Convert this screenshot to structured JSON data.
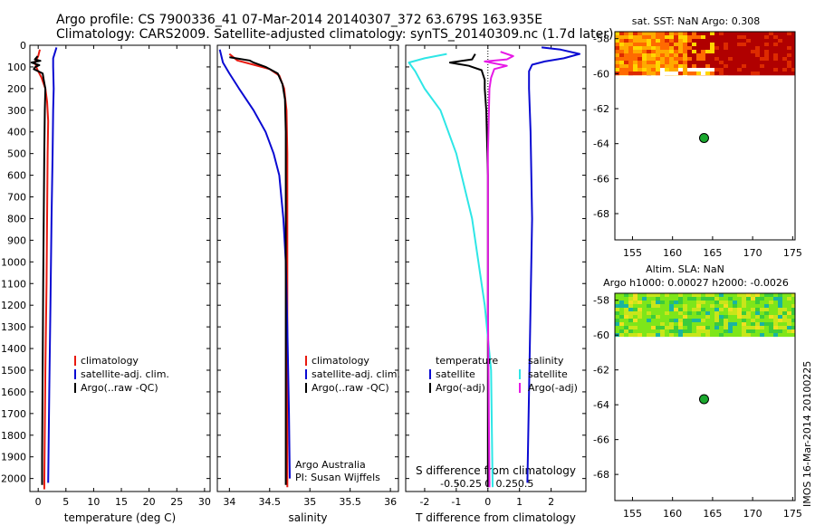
{
  "header": {
    "line1": "Argo profile: CS 7900336_41 07-Mar-2014 20140307_372 63.679S 163.935E",
    "line2": "Climatology: CARS2009. Satellite-adjusted climatology: synTS_20140309.nc (1.7d later)"
  },
  "side_label": "IMOS 16-Mar-2014 20100225",
  "colors": {
    "red": "#e8190f",
    "blue": "#0a0ad2",
    "black": "#000000",
    "cyan": "#2ee6e6",
    "magenta": "#e619e6",
    "marker": "#1aa82e"
  },
  "chart_data": [
    {
      "type": "line",
      "id": "temperature",
      "xlabel": "temperature (deg C)",
      "xlim": [
        -1.5,
        31
      ],
      "xticks": [
        0,
        5,
        10,
        15,
        20,
        25,
        30
      ],
      "ylim": [
        2060,
        0
      ],
      "yticks": [
        0,
        100,
        200,
        300,
        400,
        500,
        600,
        700,
        800,
        900,
        1000,
        1100,
        1200,
        1300,
        1400,
        1500,
        1600,
        1700,
        1800,
        1900,
        2000
      ],
      "legend": [
        "climatology",
        "satellite-adj. clim.",
        "Argo(..raw -QC)"
      ],
      "series": [
        {
          "name": "climatology",
          "color": "red",
          "points": [
            [
              0.3,
              20
            ],
            [
              0,
              50
            ],
            [
              -0.6,
              80
            ],
            [
              -0.2,
              110
            ],
            [
              0.6,
              150
            ],
            [
              1.3,
              200
            ],
            [
              1.6,
              260
            ],
            [
              1.8,
              350
            ],
            [
              1.7,
              500
            ],
            [
              1.6,
              800
            ],
            [
              1.5,
              1100
            ],
            [
              1.3,
              1500
            ],
            [
              1.1,
              2050
            ]
          ]
        },
        {
          "name": "satellite-adj. clim.",
          "color": "blue",
          "points": [
            [
              3.3,
              10
            ],
            [
              2.7,
              60
            ],
            [
              2.7,
              100
            ],
            [
              2.8,
              200
            ],
            [
              2.7,
              300
            ],
            [
              2.6,
              500
            ],
            [
              2.4,
              800
            ],
            [
              2.2,
              1200
            ],
            [
              2.0,
              1600
            ],
            [
              1.8,
              2020
            ]
          ]
        },
        {
          "name": "Argo(..raw -QC)",
          "color": "black",
          "points": [
            [
              -0.1,
              50
            ],
            [
              -0.6,
              65
            ],
            [
              0.4,
              72
            ],
            [
              -1.2,
              80
            ],
            [
              0.2,
              92
            ],
            [
              -0.5,
              100
            ],
            [
              -0.8,
              110
            ],
            [
              0.8,
              130
            ],
            [
              1.0,
              160
            ],
            [
              1.3,
              200
            ],
            [
              1.2,
              300
            ],
            [
              1.1,
              500
            ],
            [
              1.0,
              800
            ],
            [
              0.9,
              1100
            ],
            [
              0.8,
              1500
            ],
            [
              0.7,
              1900
            ],
            [
              0.7,
              2030
            ]
          ]
        }
      ]
    },
    {
      "type": "line",
      "id": "salinity",
      "xlabel": "salinity",
      "xlim": [
        33.85,
        36.1
      ],
      "xticks": [
        34,
        34.5,
        35,
        35.5,
        36
      ],
      "ylim": [
        2060,
        0
      ],
      "legend": [
        "climatology",
        "satellite-adj. clim.",
        "Argo(..raw -QC)"
      ],
      "annotation": [
        "Argo Australia",
        "PI: Susan Wijffels"
      ],
      "series": [
        {
          "name": "climatology",
          "color": "red",
          "points": [
            [
              34.0,
              40
            ],
            [
              34.1,
              70
            ],
            [
              34.3,
              90
            ],
            [
              34.5,
              110
            ],
            [
              34.62,
              140
            ],
            [
              34.68,
              200
            ],
            [
              34.71,
              300
            ],
            [
              34.72,
              500
            ],
            [
              34.72,
              1000
            ],
            [
              34.72,
              1500
            ],
            [
              34.72,
              2040
            ]
          ]
        },
        {
          "name": "satellite-adj. clim.",
          "color": "blue",
          "points": [
            [
              33.88,
              20
            ],
            [
              33.92,
              80
            ],
            [
              34.0,
              130
            ],
            [
              34.12,
              200
            ],
            [
              34.3,
              300
            ],
            [
              34.45,
              400
            ],
            [
              34.55,
              500
            ],
            [
              34.62,
              600
            ],
            [
              34.67,
              800
            ],
            [
              34.7,
              1000
            ],
            [
              34.72,
              1300
            ],
            [
              34.74,
              1700
            ],
            [
              34.75,
              2000
            ]
          ]
        },
        {
          "name": "Argo(..raw -QC)",
          "color": "black",
          "points": [
            [
              34.0,
              55
            ],
            [
              34.25,
              70
            ],
            [
              34.3,
              80
            ],
            [
              34.45,
              100
            ],
            [
              34.6,
              130
            ],
            [
              34.66,
              180
            ],
            [
              34.69,
              250
            ],
            [
              34.7,
              400
            ],
            [
              34.7,
              800
            ],
            [
              34.7,
              1200
            ],
            [
              34.7,
              1600
            ],
            [
              34.7,
              2030
            ]
          ]
        }
      ]
    },
    {
      "type": "line",
      "id": "differences",
      "xlabel": "T difference from climatology",
      "x2label": "S difference from climatology",
      "xlim": [
        -2.6,
        3.1
      ],
      "xticks": [
        -2,
        -1,
        0,
        1,
        2
      ],
      "x2ticks": [
        "-0.5",
        "-0.25",
        "0",
        "0.25",
        "0.5"
      ],
      "ylim": [
        2060,
        0
      ],
      "legend_left_title": "temperature",
      "legend_right_title": "salinity",
      "legend_left": [
        "satellite",
        "Argo(-adj)"
      ],
      "legend_right": [
        "satellite",
        "Argo(-adj)"
      ],
      "series": [
        {
          "name": "T satellite",
          "color": "blue",
          "points": [
            [
              1.7,
              10
            ],
            [
              2.3,
              20
            ],
            [
              2.9,
              40
            ],
            [
              2.4,
              60
            ],
            [
              1.8,
              75
            ],
            [
              1.4,
              90
            ],
            [
              1.3,
              120
            ],
            [
              1.3,
              200
            ],
            [
              1.35,
              400
            ],
            [
              1.4,
              800
            ],
            [
              1.35,
              1200
            ],
            [
              1.3,
              1600
            ],
            [
              1.25,
              2020
            ]
          ]
        },
        {
          "name": "T Argo(-adj)",
          "color": "black",
          "points": [
            [
              -0.4,
              40
            ],
            [
              -0.5,
              65
            ],
            [
              -1.2,
              80
            ],
            [
              -0.6,
              95
            ],
            [
              -0.5,
              100
            ],
            [
              -0.2,
              115
            ],
            [
              -0.1,
              160
            ],
            [
              -0.1,
              200
            ],
            [
              -0.05,
              300
            ],
            [
              0,
              600
            ],
            [
              0,
              1200
            ],
            [
              0,
              2040
            ]
          ]
        },
        {
          "name": "S satellite",
          "color": "cyan",
          "points": [
            [
              -1.3,
              40
            ],
            [
              -2.0,
              60
            ],
            [
              -2.5,
              80
            ],
            [
              -2.3,
              120
            ],
            [
              -2.0,
              200
            ],
            [
              -1.5,
              300
            ],
            [
              -1.0,
              500
            ],
            [
              -0.5,
              800
            ],
            [
              -0.1,
              1200
            ],
            [
              0.1,
              1500
            ],
            [
              0.15,
              2040
            ]
          ]
        },
        {
          "name": "S Argo(-adj)",
          "color": "magenta",
          "points": [
            [
              0.4,
              30
            ],
            [
              0.8,
              50
            ],
            [
              0.6,
              65
            ],
            [
              -0.1,
              75
            ],
            [
              0.6,
              95
            ],
            [
              0.2,
              110
            ],
            [
              0.1,
              150
            ],
            [
              0.05,
              200
            ],
            [
              0,
              500
            ],
            [
              0,
              1200
            ],
            [
              0.05,
              2040
            ]
          ]
        }
      ]
    },
    {
      "type": "heatmap",
      "id": "sst_map",
      "title": "sat. SST: NaN Argo: 0.308",
      "xlim": [
        152.8,
        175.3
      ],
      "ylim": [
        -69.5,
        -57.6
      ],
      "xticks": [
        155,
        160,
        165,
        170,
        175
      ],
      "yticks": [
        -58,
        -60,
        -62,
        -64,
        -66,
        -68
      ],
      "field_lat_range": [
        -60.1,
        -57.6
      ],
      "palette": [
        "#ff6a00",
        "#ffaa00",
        "#ffd600",
        "#b00000",
        "#dd2a00"
      ],
      "argo_position": [
        163.935,
        -63.679
      ]
    },
    {
      "type": "heatmap",
      "id": "sla_map",
      "title": "Altim. SLA: NaN",
      "subtitle": "Argo h1000: 0.00027 h2000: -0.0026",
      "xlim": [
        152.8,
        175.3
      ],
      "ylim": [
        -69.5,
        -57.6
      ],
      "xticks": [
        155,
        160,
        165,
        170,
        175
      ],
      "yticks": [
        -58,
        -60,
        -62,
        -64,
        -66,
        -68
      ],
      "field_lat_range": [
        -60.1,
        -57.6
      ],
      "palette": [
        "#7ee61a",
        "#c8e61a",
        "#3ccc3c",
        "#1ab4a0",
        "#f0e020"
      ],
      "argo_position": [
        163.935,
        -63.679
      ]
    }
  ]
}
